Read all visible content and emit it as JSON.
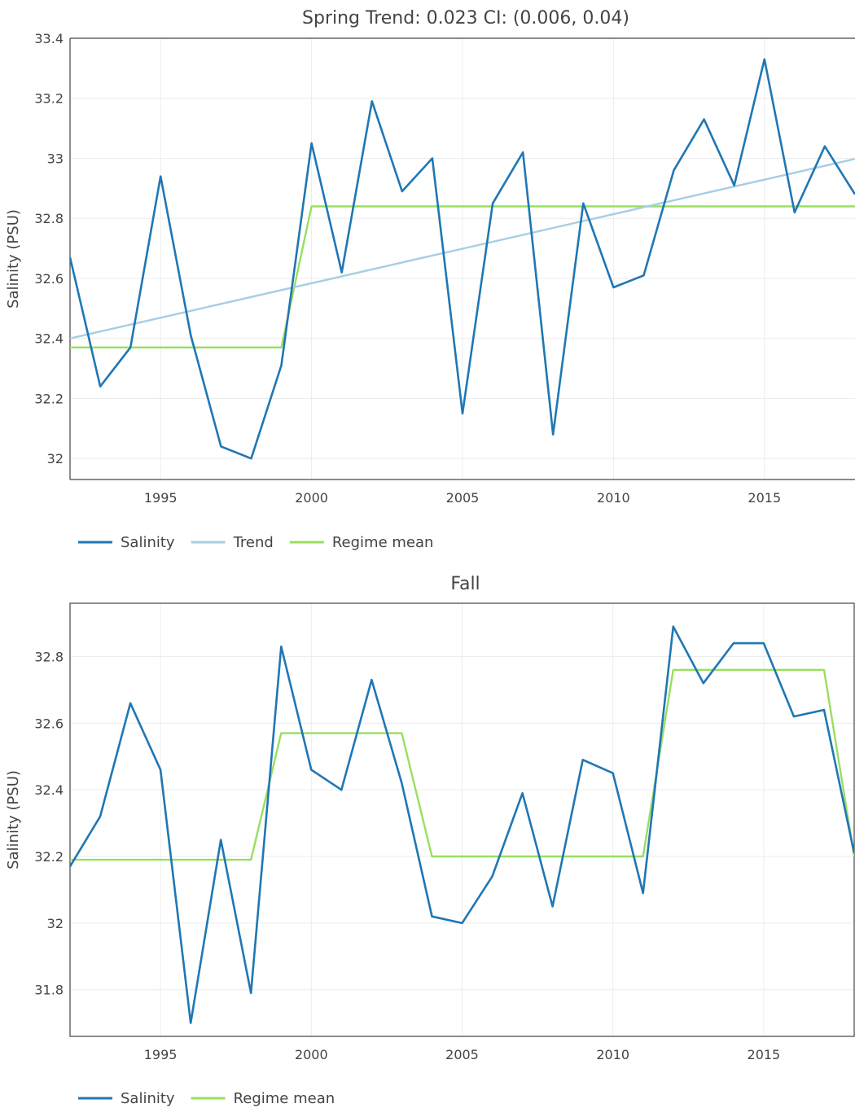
{
  "chart_data": [
    {
      "type": "line",
      "title": "Spring Trend: 0.023 CI: (0.006, 0.04)",
      "ylabel": "Salinity (PSU)",
      "xlabel": "",
      "xlim": [
        1992,
        2018
      ],
      "ylim": [
        31.93,
        33.4
      ],
      "xticks": [
        1995,
        2000,
        2005,
        2010,
        2015
      ],
      "yticks": [
        32,
        32.2,
        32.4,
        32.6,
        32.8,
        33,
        33.2,
        33.4
      ],
      "grid": true,
      "legend": "bottom-left",
      "x": [
        1992,
        1993,
        1994,
        1995,
        1996,
        1997,
        1998,
        1999,
        2000,
        2001,
        2002,
        2003,
        2004,
        2005,
        2006,
        2007,
        2008,
        2009,
        2010,
        2011,
        2012,
        2013,
        2014,
        2015,
        2016,
        2017,
        2018
      ],
      "series": [
        {
          "name": "Salinity",
          "color": "#1f77b4",
          "values": [
            32.67,
            32.24,
            32.37,
            32.94,
            32.41,
            32.04,
            32.0,
            32.31,
            33.05,
            32.62,
            33.19,
            32.89,
            33.0,
            32.15,
            32.85,
            33.02,
            32.08,
            32.85,
            32.57,
            32.61,
            32.96,
            33.13,
            32.91,
            33.33,
            32.82,
            33.04,
            32.88
          ]
        },
        {
          "name": "Trend",
          "color": "#a6cee3",
          "values": [
            32.4,
            32.423,
            32.446,
            32.469,
            32.492,
            32.515,
            32.538,
            32.561,
            32.584,
            32.607,
            32.63,
            32.653,
            32.676,
            32.699,
            32.722,
            32.745,
            32.768,
            32.791,
            32.814,
            32.837,
            32.86,
            32.883,
            32.906,
            32.929,
            32.952,
            32.975,
            32.998
          ]
        },
        {
          "name": "Regime mean",
          "color": "#98df60",
          "values": [
            32.37,
            32.37,
            32.37,
            32.37,
            32.37,
            32.37,
            32.37,
            32.37,
            32.84,
            32.84,
            32.84,
            32.84,
            32.84,
            32.84,
            32.84,
            32.84,
            32.84,
            32.84,
            32.84,
            32.84,
            32.84,
            32.84,
            32.84,
            32.84,
            32.84,
            32.84,
            32.84
          ]
        }
      ]
    },
    {
      "type": "line",
      "title": "Fall",
      "ylabel": "Salinity (PSU)",
      "xlabel": "",
      "xlim": [
        1992,
        2018
      ],
      "ylim": [
        31.66,
        32.96
      ],
      "xticks": [
        1995,
        2000,
        2005,
        2010,
        2015
      ],
      "yticks": [
        31.8,
        32,
        32.2,
        32.4,
        32.6,
        32.8
      ],
      "grid": true,
      "legend": "bottom-left",
      "x": [
        1992,
        1993,
        1994,
        1995,
        1996,
        1997,
        1998,
        1999,
        2000,
        2001,
        2002,
        2003,
        2004,
        2005,
        2006,
        2007,
        2008,
        2009,
        2010,
        2011,
        2012,
        2013,
        2014,
        2015,
        2016,
        2017,
        2018
      ],
      "series": [
        {
          "name": "Salinity",
          "color": "#1f77b4",
          "values": [
            32.17,
            32.32,
            32.66,
            32.46,
            31.7,
            32.25,
            31.79,
            32.83,
            32.46,
            32.4,
            32.73,
            32.42,
            32.02,
            32.0,
            32.14,
            32.39,
            32.05,
            32.49,
            32.45,
            32.09,
            32.89,
            32.72,
            32.84,
            32.84,
            32.62,
            32.64,
            32.21
          ]
        },
        {
          "name": "Regime mean",
          "color": "#98df60",
          "values": [
            32.19,
            32.19,
            32.19,
            32.19,
            32.19,
            32.19,
            32.19,
            32.57,
            32.57,
            32.57,
            32.57,
            32.57,
            32.2,
            32.2,
            32.2,
            32.2,
            32.2,
            32.2,
            32.2,
            32.2,
            32.76,
            32.76,
            32.76,
            32.76,
            32.76,
            32.76,
            32.2
          ]
        }
      ]
    }
  ]
}
